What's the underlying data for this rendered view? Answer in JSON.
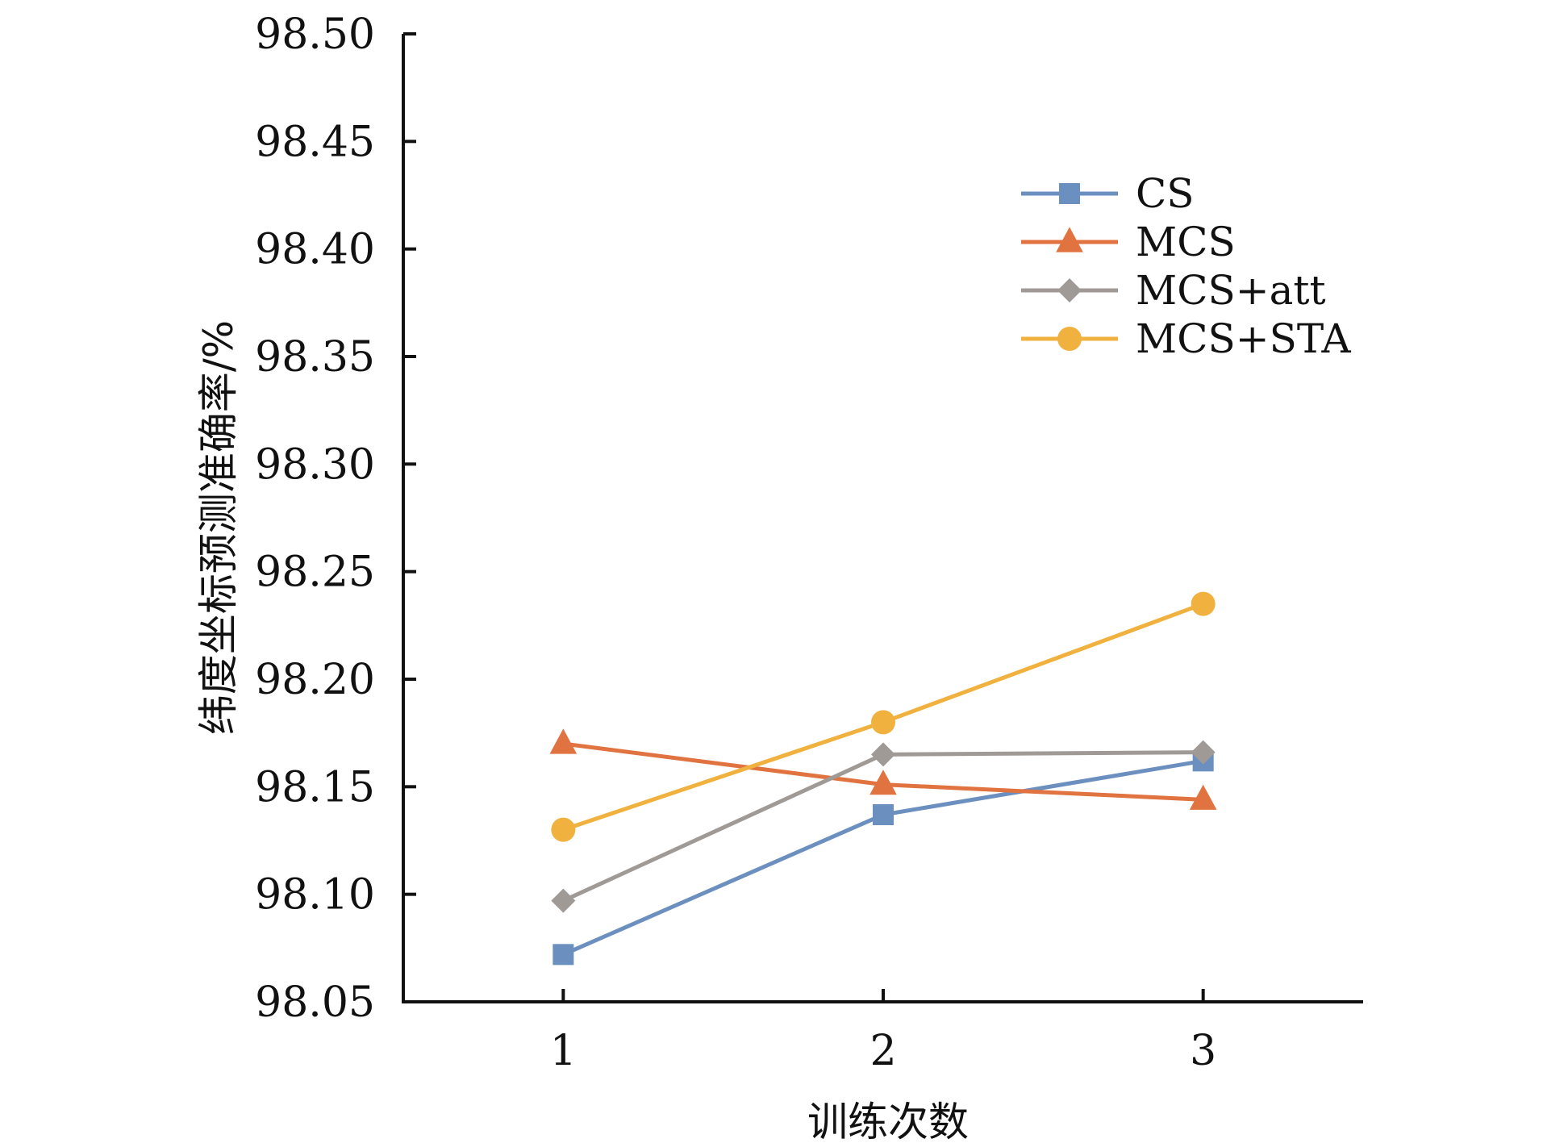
{
  "chart_data": {
    "type": "line",
    "title": "",
    "xlabel": "训练次数",
    "ylabel": "纬度坐标预测准确率/%",
    "x": [
      1,
      2,
      3
    ],
    "x_tick_labels": [
      "1",
      "2",
      "3"
    ],
    "xlim": [
      0.5,
      3.5
    ],
    "ylim": [
      98.05,
      98.5
    ],
    "y_tick_labels": [
      "98.05",
      "98.10",
      "98.15",
      "98.20",
      "98.25",
      "98.30",
      "98.35",
      "98.40",
      "98.45",
      "98.50"
    ],
    "grid": false,
    "legend_position": "top-right",
    "series": [
      {
        "name": "CS",
        "values": [
          98.072,
          98.137,
          98.162
        ],
        "color": "#6b8fbf",
        "marker": "square"
      },
      {
        "name": "MCS",
        "values": [
          98.17,
          98.151,
          98.144
        ],
        "color": "#e0733f",
        "marker": "triangle"
      },
      {
        "name": "MCS+att",
        "values": [
          98.097,
          98.165,
          98.166
        ],
        "color": "#a09a97",
        "marker": "diamond"
      },
      {
        "name": "MCS+STA",
        "values": [
          98.13,
          98.18,
          98.235
        ],
        "color": "#f0b13f",
        "marker": "circle"
      }
    ]
  }
}
